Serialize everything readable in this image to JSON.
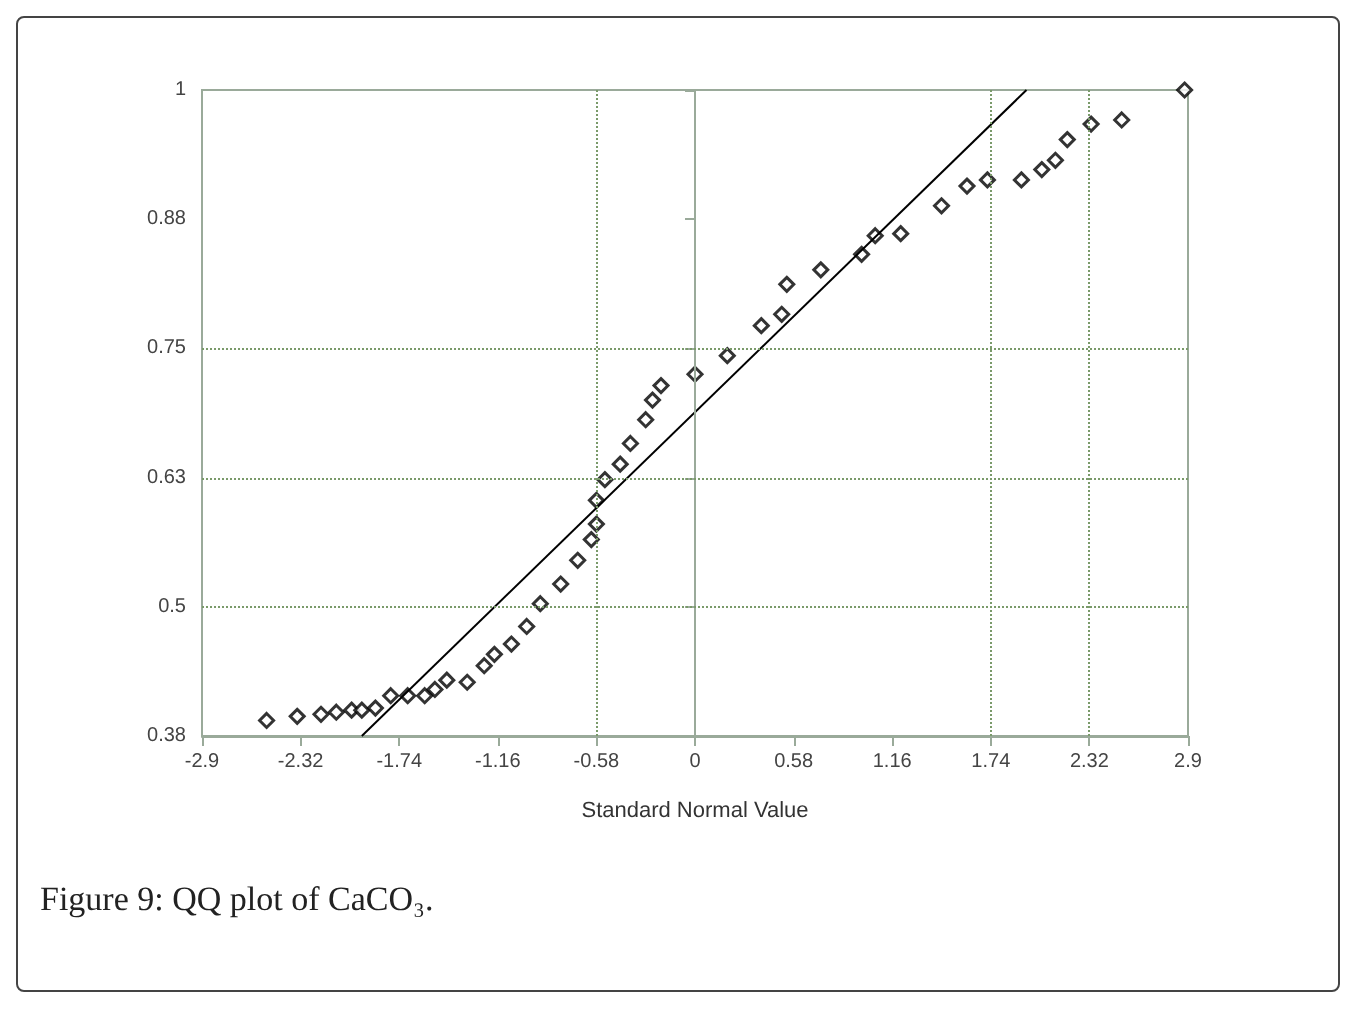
{
  "chart_data": {
    "type": "scatter",
    "xlabel": "Standard Normal Value",
    "annotations": [
      "Figure 9: QQ plot of CaCO₃."
    ],
    "xlim": [
      -2.9,
      2.9
    ],
    "xticks": [
      -2.9,
      -2.32,
      -1.74,
      -1.16,
      -0.58,
      0,
      0.58,
      1.16,
      1.74,
      2.32,
      2.9
    ],
    "ylim": [
      0.375,
      1
    ],
    "yticks": [
      {
        "value": 0.375,
        "label": "0.38"
      },
      0.5,
      {
        "value": 0.625,
        "label": "0.63"
      },
      0.75,
      {
        "value": 0.875,
        "label": "0.88"
      },
      1
    ],
    "grid": false,
    "marker": "diamond",
    "ref_lines": [
      {
        "axis": "x",
        "value": -0.58,
        "color": "#7a9a6a",
        "line_style": "dotted"
      },
      {
        "axis": "x",
        "value": 0,
        "color": "#9aaa9a",
        "line_style": "solid"
      },
      {
        "axis": "x",
        "value": 1.74,
        "color": "#7a9a6a",
        "line_style": "dotted"
      },
      {
        "axis": "x",
        "value": 2.32,
        "color": "#7a9a6a",
        "line_style": "dotted"
      },
      {
        "axis": "y",
        "value": 0.5,
        "color": "#7a9a6a",
        "line_style": "dotted"
      },
      {
        "axis": "y",
        "value": 0.625,
        "color": "#7a9a6a",
        "line_style": "dotted"
      },
      {
        "axis": "y",
        "value": 0.75,
        "color": "#7a9a6a",
        "line_style": "dotted"
      }
    ],
    "series": [
      {
        "color": "#000000",
        "x": [
          -2.52,
          -2.34,
          -2.2,
          -2.11,
          -2.02,
          -1.96,
          -1.88,
          -1.79,
          -1.69,
          -1.59,
          -1.53,
          -1.46,
          -1.34,
          -1.24,
          -1.18,
          -1.08,
          -0.99,
          -0.91,
          -0.79,
          -0.69,
          -0.61,
          -0.58,
          -0.58,
          -0.53,
          -0.44,
          -0.38,
          -0.29,
          -0.25,
          -0.2,
          0,
          0.19,
          0.39,
          0.51,
          0.54,
          0.74,
          0.98,
          1.06,
          1.21,
          1.45,
          1.6,
          1.72,
          1.92,
          2.04,
          2.12,
          2.19,
          2.33,
          2.51,
          2.88
        ],
        "values": [
          0.39,
          0.394,
          0.396,
          0.398,
          0.4,
          0.4,
          0.402,
          0.414,
          0.414,
          0.414,
          0.42,
          0.429,
          0.427,
          0.443,
          0.454,
          0.464,
          0.481,
          0.503,
          0.522,
          0.545,
          0.565,
          0.58,
          0.603,
          0.623,
          0.638,
          0.658,
          0.681,
          0.7,
          0.714,
          0.725,
          0.743,
          0.772,
          0.783,
          0.812,
          0.826,
          0.841,
          0.859,
          0.861,
          0.888,
          0.907,
          0.913,
          0.913,
          0.923,
          0.932,
          0.952,
          0.967,
          0.971,
          1.0
        ]
      },
      {
        "type": "line",
        "color": "#000000",
        "marker": "none",
        "line_style": "solid",
        "x": [
          -1.96,
          1.95
        ],
        "values": [
          0.375,
          1.0
        ]
      }
    ]
  }
}
